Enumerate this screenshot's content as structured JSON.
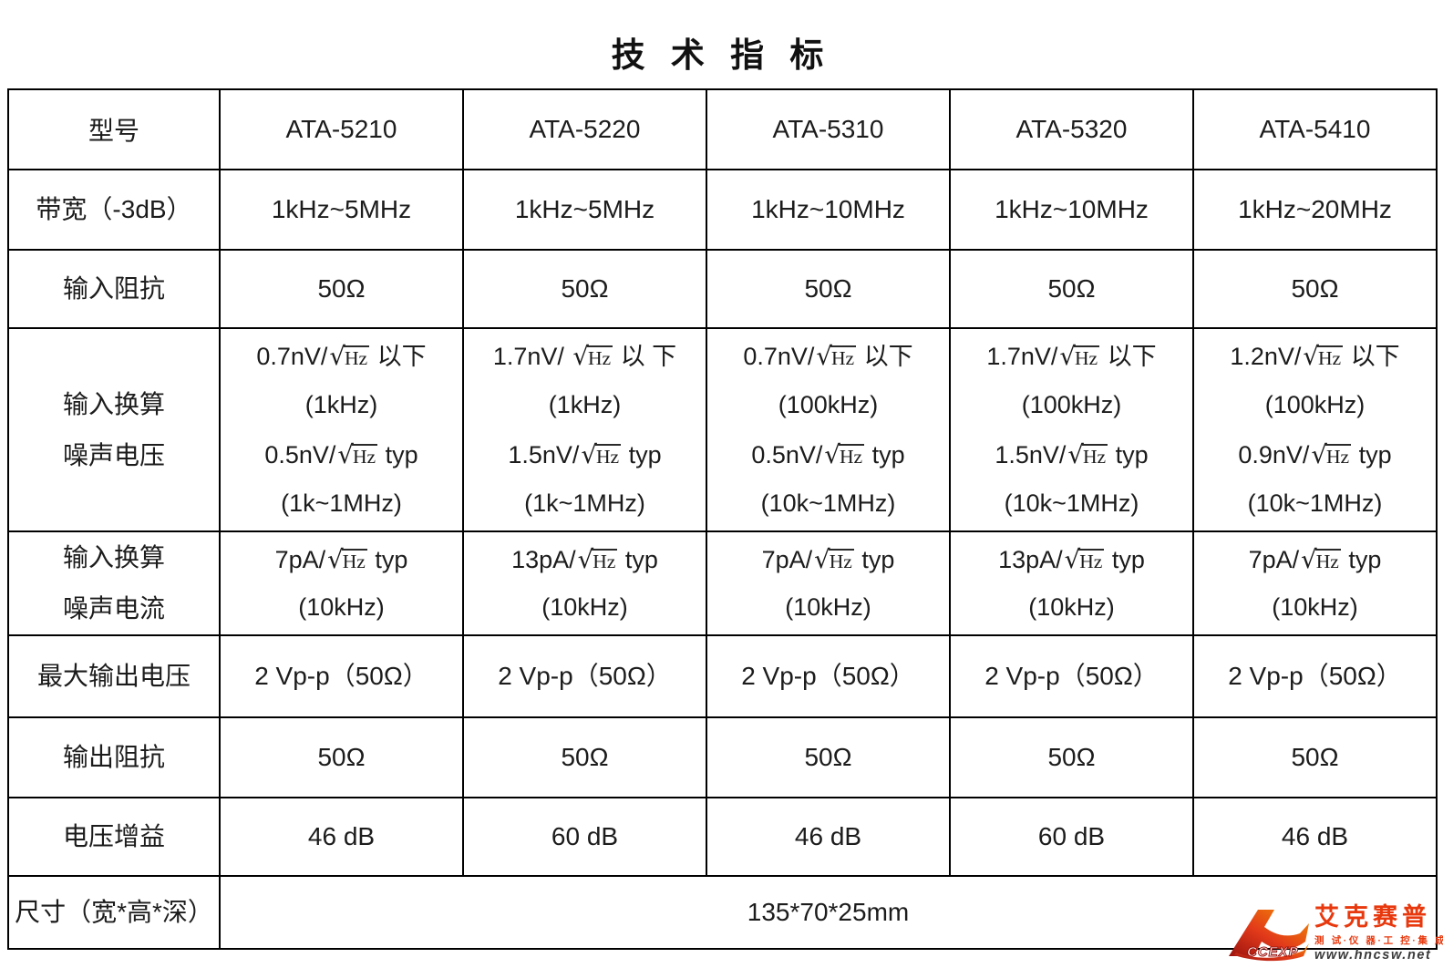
{
  "page_title": "技 术 指 标",
  "table": {
    "corner_label": "型号",
    "models": [
      "ATA-5210",
      "ATA-5220",
      "ATA-5310",
      "ATA-5320",
      "ATA-5410"
    ],
    "rows": [
      {
        "id": "bandwidth",
        "label": [
          "带宽（-3dB）"
        ],
        "cells": [
          [
            "1kHz~5MHz"
          ],
          [
            "1kHz~5MHz"
          ],
          [
            "1kHz~10MHz"
          ],
          [
            "1kHz~10MHz"
          ],
          [
            "1kHz~20MHz"
          ]
        ]
      },
      {
        "id": "input-impedance",
        "label": [
          "输入阻抗"
        ],
        "cells": [
          [
            "50Ω"
          ],
          [
            "50Ω"
          ],
          [
            "50Ω"
          ],
          [
            "50Ω"
          ],
          [
            "50Ω"
          ]
        ]
      },
      {
        "id": "input-noise-voltage",
        "label": [
          "输入换算",
          "噪声电压"
        ],
        "cells": [
          [
            {
              "pre": "0.7nV/",
              "sqrt": "Hz",
              "post": " 以下"
            },
            "(1kHz)",
            {
              "pre": "0.5nV/",
              "sqrt": "Hz",
              "post": " typ"
            },
            "(1k~1MHz)"
          ],
          [
            {
              "pre": "1.7nV/ ",
              "sqrt": "Hz",
              "post": "  以 下"
            },
            "(1kHz)",
            {
              "pre": "1.5nV/",
              "sqrt": "Hz",
              "post": " typ"
            },
            "(1k~1MHz)"
          ],
          [
            {
              "pre": "0.7nV/",
              "sqrt": "Hz",
              "post": " 以下"
            },
            "(100kHz)",
            {
              "pre": "0.5nV/",
              "sqrt": "Hz",
              "post": " typ"
            },
            "(10k~1MHz)"
          ],
          [
            {
              "pre": "1.7nV/",
              "sqrt": "Hz",
              "post": " 以下"
            },
            "(100kHz)",
            {
              "pre": "1.5nV/",
              "sqrt": "Hz",
              "post": " typ"
            },
            "(10k~1MHz)"
          ],
          [
            {
              "pre": "1.2nV/",
              "sqrt": "Hz",
              "post": " 以下"
            },
            "(100kHz)",
            {
              "pre": "0.9nV/",
              "sqrt": "Hz",
              "post": " typ"
            },
            "(10k~1MHz)"
          ]
        ]
      },
      {
        "id": "input-noise-current",
        "label": [
          "输入换算",
          "噪声电流"
        ],
        "cells": [
          [
            {
              "pre": "7pA/",
              "sqrt": "Hz",
              "post": " typ"
            },
            "(10kHz)"
          ],
          [
            {
              "pre": "13pA/",
              "sqrt": "Hz",
              "post": " typ"
            },
            "(10kHz)"
          ],
          [
            {
              "pre": "7pA/",
              "sqrt": "Hz",
              "post": " typ"
            },
            "(10kHz)"
          ],
          [
            {
              "pre": "13pA/",
              "sqrt": "Hz",
              "post": " typ"
            },
            "(10kHz)"
          ],
          [
            {
              "pre": "7pA/",
              "sqrt": "Hz",
              "post": " typ"
            },
            "(10kHz)"
          ]
        ]
      },
      {
        "id": "max-output-voltage",
        "label": [
          "最大输出电压"
        ],
        "cells": [
          [
            "2 Vp-p（50Ω）"
          ],
          [
            "2 Vp-p（50Ω）"
          ],
          [
            "2 Vp-p（50Ω）"
          ],
          [
            "2 Vp-p（50Ω）"
          ],
          [
            "2 Vp-p（50Ω）"
          ]
        ]
      },
      {
        "id": "output-impedance",
        "label": [
          "输出阻抗"
        ],
        "cells": [
          [
            "50Ω"
          ],
          [
            "50Ω"
          ],
          [
            "50Ω"
          ],
          [
            "50Ω"
          ],
          [
            "50Ω"
          ]
        ]
      },
      {
        "id": "voltage-gain",
        "label": [
          "电压增益"
        ],
        "cells": [
          [
            "46 dB"
          ],
          [
            "60 dB"
          ],
          [
            "46 dB"
          ],
          [
            "60 dB"
          ],
          [
            "46 dB"
          ]
        ]
      },
      {
        "id": "dimensions",
        "label": [
          "尺寸（宽*高*深）"
        ],
        "span_all": true,
        "cells": [
          [
            "135*70*25mm"
          ]
        ]
      }
    ]
  },
  "logo": {
    "brand_cn": "艾克赛普",
    "tagline": "测 试·仪 器·工 控·集 成",
    "website": "www.hncsw.net",
    "monogram": "CCEXP",
    "colors": {
      "brand_red": "#e8380d",
      "gradient_dark": "#9b130e",
      "gradient_mid": "#e23a1a",
      "gradient_light": "#f39000"
    }
  }
}
